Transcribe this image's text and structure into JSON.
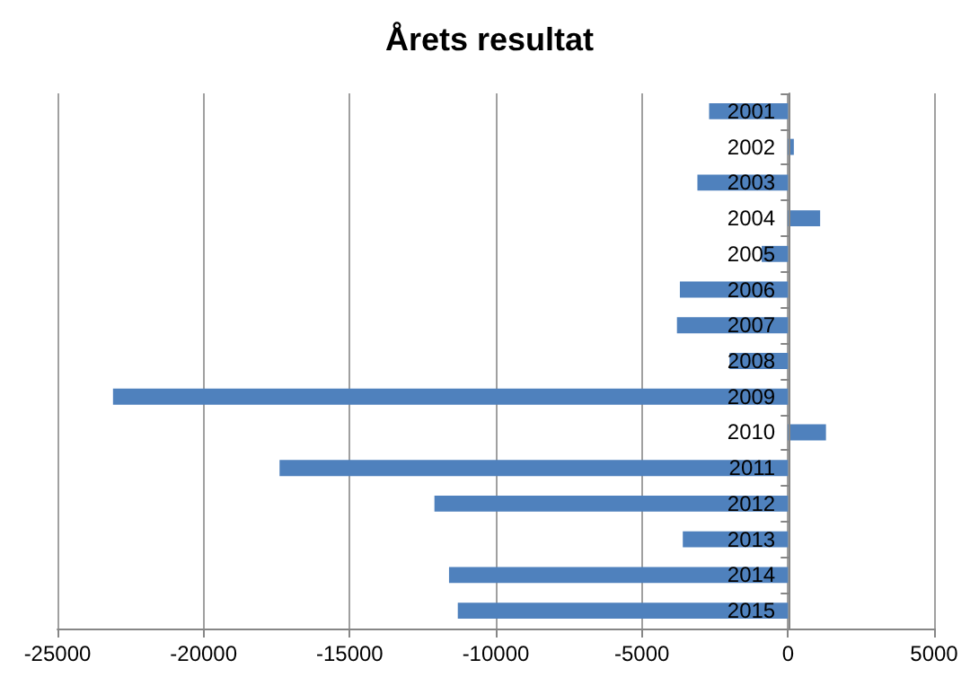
{
  "chart_data": {
    "type": "bar",
    "orientation": "horizontal",
    "title": "Årets resultat",
    "categories": [
      "2001",
      "2002",
      "2003",
      "2004",
      "2005",
      "2006",
      "2007",
      "2008",
      "2009",
      "2010",
      "2011",
      "2012",
      "2013",
      "2014",
      "2015"
    ],
    "values": [
      -2700,
      200,
      -3100,
      1100,
      -900,
      -3700,
      -3800,
      -2000,
      -23100,
      1300,
      -17400,
      -12100,
      -3600,
      -11600,
      -11300
    ],
    "color": "#4f81bd",
    "xlim": [
      -25000,
      5000
    ],
    "xticks": [
      -25000,
      -20000,
      -15000,
      -10000,
      -5000,
      0,
      5000
    ],
    "grid": "x"
  }
}
